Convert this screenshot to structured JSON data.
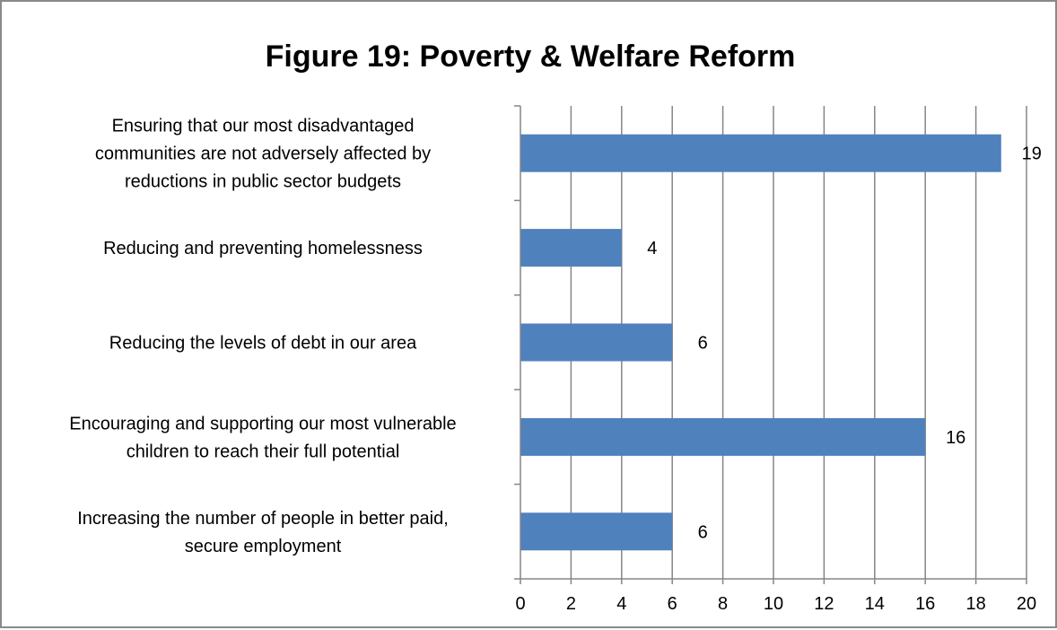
{
  "chart_data": {
    "type": "bar",
    "orientation": "horizontal",
    "title": "Figure 19: Poverty & Welfare Reform",
    "xlabel": "",
    "ylabel": "",
    "categories": [
      [
        "Ensuring that our most disadvantaged",
        "communities are not adversely affected by",
        "reductions in public sector budgets"
      ],
      [
        "Reducing and preventing homelessness"
      ],
      [
        "Reducing the levels of debt in our area"
      ],
      [
        "Encouraging and supporting our most vulnerable",
        "children  to reach their full potential"
      ],
      [
        "Increasing the number of people in better paid,",
        "secure employment"
      ]
    ],
    "values": [
      19,
      4,
      6,
      16,
      6
    ],
    "data_labels": [
      "19",
      "4",
      "6",
      "16",
      "6"
    ],
    "xlim": [
      0,
      20
    ],
    "xticks": [
      "0",
      "2",
      "4",
      "6",
      "8",
      "10",
      "12",
      "14",
      "16",
      "18",
      "20"
    ],
    "grid": "vertical",
    "legend": "none",
    "bar_color": "#4f81bd",
    "gridline_color": "#868686"
  }
}
